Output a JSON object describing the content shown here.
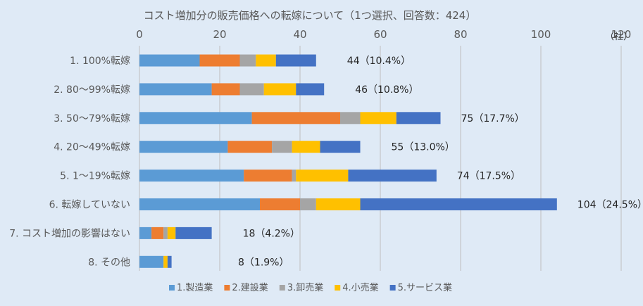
{
  "chart_data": {
    "type": "bar",
    "orientation": "horizontal",
    "stacked": true,
    "title": "コスト増加分の販売価格への転嫁について（1つ選択、回答数：424）",
    "unit_label": "（社）",
    "xlim": [
      0,
      120
    ],
    "xticks": [
      0,
      20,
      40,
      60,
      80,
      100,
      120
    ],
    "grid": true,
    "legend_position": "bottom",
    "categories": [
      "1. 100%転嫁",
      "2. 80～99%転嫁",
      "3. 50～79%転嫁",
      "4. 20～49%転嫁",
      "5. 1～19%転嫁",
      "6. 転嫁していない",
      "7. コスト増加の影響はない",
      "8. その他"
    ],
    "series": [
      {
        "name": "1.製造業",
        "color": "#5b9bd5",
        "values": [
          15,
          18,
          28,
          22,
          26,
          30,
          3,
          6
        ]
      },
      {
        "name": "2.建設業",
        "color": "#ed7d31",
        "values": [
          10,
          7,
          22,
          11,
          12,
          10,
          3,
          0
        ]
      },
      {
        "name": "3.卸売業",
        "color": "#a5a5a5",
        "values": [
          4,
          6,
          5,
          5,
          1,
          4,
          1,
          0
        ]
      },
      {
        "name": "4.小売業",
        "color": "#ffc000",
        "values": [
          5,
          8,
          9,
          7,
          13,
          11,
          2,
          1
        ]
      },
      {
        "name": "5.サービス業",
        "color": "#4472c4",
        "values": [
          10,
          7,
          11,
          10,
          22,
          49,
          9,
          1
        ]
      }
    ],
    "totals": [
      44,
      46,
      75,
      55,
      74,
      104,
      18,
      8
    ],
    "data_labels": [
      "44（10.4%）",
      "46（10.8%）",
      "75（17.7%）",
      "55（13.0%）",
      "74（17.5%）",
      "104（24.5%）",
      "18（4.2%）",
      "8（1.9%）"
    ]
  }
}
